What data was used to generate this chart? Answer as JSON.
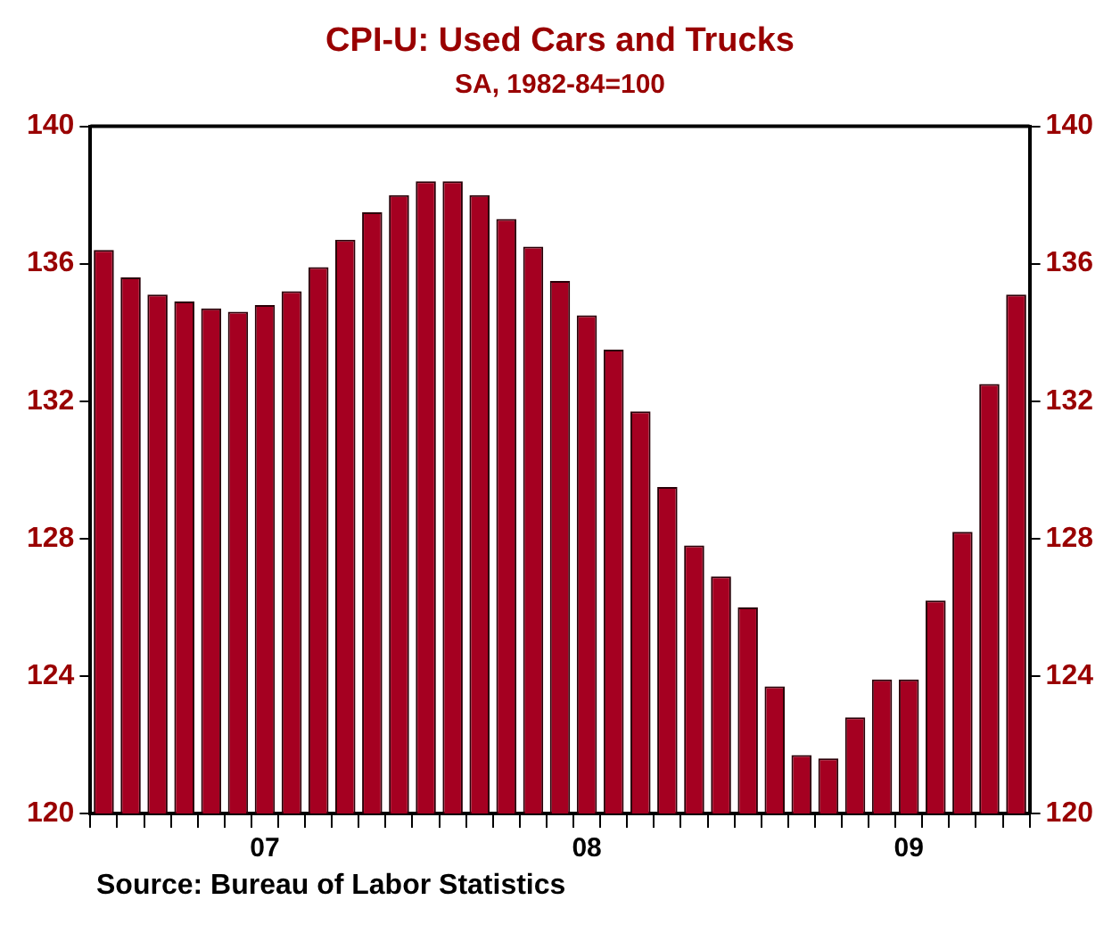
{
  "chart_data": {
    "type": "bar",
    "title": "CPI-U: Used Cars and Trucks",
    "subtitle": "SA, 1982-84=100",
    "categories": [
      null,
      null,
      null,
      null,
      null,
      null,
      "07",
      null,
      null,
      null,
      null,
      null,
      null,
      null,
      null,
      null,
      null,
      null,
      "08",
      null,
      null,
      null,
      null,
      null,
      null,
      null,
      null,
      null,
      null,
      null,
      "09",
      null,
      null,
      null,
      null
    ],
    "values": [
      136.4,
      135.6,
      135.1,
      134.9,
      134.7,
      134.6,
      134.8,
      135.2,
      135.9,
      136.7,
      137.5,
      138.0,
      138.4,
      138.4,
      138.0,
      137.3,
      136.5,
      135.5,
      134.5,
      133.5,
      131.7,
      129.5,
      127.8,
      126.9,
      126.0,
      123.7,
      121.7,
      121.6,
      122.8,
      123.9,
      123.9,
      126.2,
      128.2,
      132.5,
      135.1
    ],
    "color": "#a50021",
    "ylim": [
      120,
      140
    ],
    "yticks": [
      120,
      124,
      128,
      132,
      136,
      140
    ],
    "y2lim": [
      120,
      140
    ],
    "y2ticks": [
      120,
      124,
      128,
      132,
      136,
      140
    ],
    "grid": false,
    "legend": false,
    "annotations": [
      "Source:  Bureau of Labor Statistics"
    ]
  }
}
